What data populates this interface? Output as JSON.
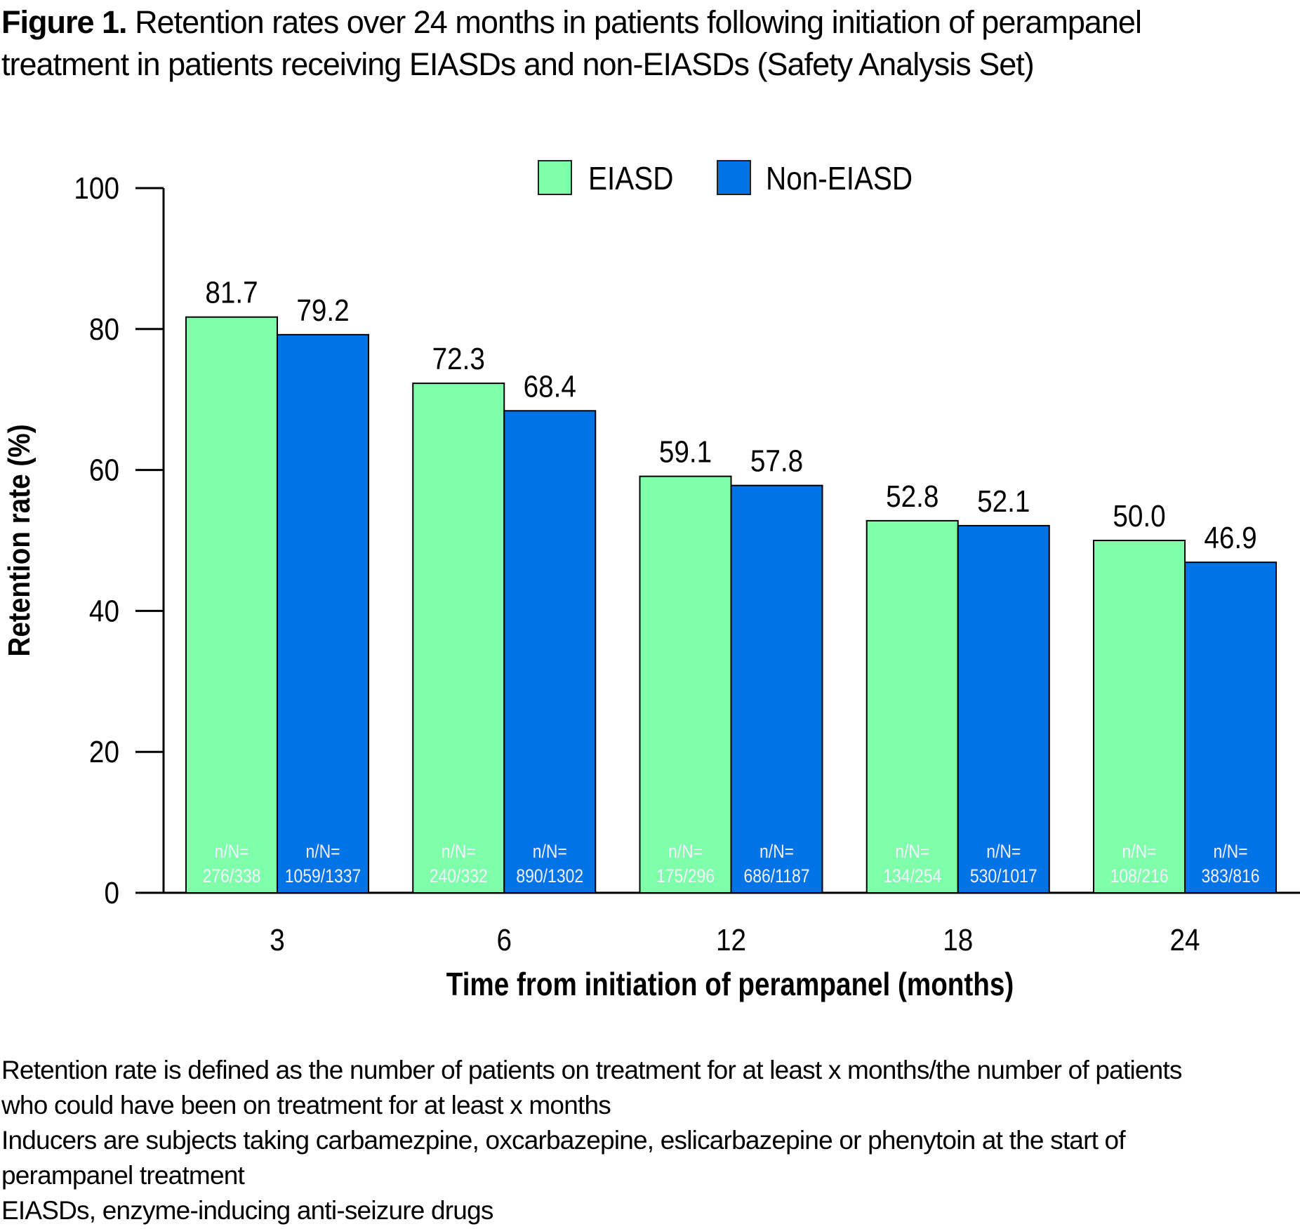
{
  "figure": {
    "label": "Figure 1.",
    "caption_line1": "Retention rates over 24 months in patients following initiation of perampanel",
    "caption_line2": "treatment in patients receiving EIASDs and non-EIASDs (Safety Analysis Set)"
  },
  "footnotes": [
    "Retention rate is defined as the number of patients on treatment for at least x months/the number of patients",
    "who could have been on treatment for at least x months",
    "Inducers are subjects taking carbamezpine, oxcarbazepine, eslicarbazepine or phenytoin at the start of",
    "perampanel treatment",
    "EIASDs, enzyme-inducing anti-seizure drugs"
  ],
  "chart_data": {
    "type": "bar",
    "title": "Retention rates over 24 months in patients following initiation of perampanel treatment in patients receiving EIASDs and non-EIASDs (Safety Analysis Set)",
    "xlabel": "Time from initiation of perampanel (months)",
    "ylabel": "Retention rate (%)",
    "ylim": [
      0,
      100
    ],
    "yticks": [
      0,
      20,
      40,
      60,
      80,
      100
    ],
    "grid": false,
    "legend_position": "top-center",
    "categories": [
      "3",
      "6",
      "12",
      "18",
      "24"
    ],
    "series": [
      {
        "name": "EIASD",
        "color": "#80FFAA",
        "values": [
          81.7,
          72.3,
          59.1,
          52.8,
          50.0
        ],
        "value_labels": [
          "81.7",
          "72.3",
          "59.1",
          "52.8",
          "50.0"
        ],
        "n_over_N": [
          "276/338",
          "240/332",
          "175/296",
          "134/254",
          "108/216"
        ]
      },
      {
        "name": "Non-EIASD",
        "color": "#0073E6",
        "values": [
          79.2,
          68.4,
          57.8,
          52.1,
          46.9
        ],
        "value_labels": [
          "79.2",
          "68.4",
          "57.8",
          "52.1",
          "46.9"
        ],
        "n_over_N": [
          "1059/1337",
          "890/1302",
          "686/1187",
          "530/1017",
          "383/816"
        ]
      }
    ],
    "inbar_prefix": "n/N="
  }
}
